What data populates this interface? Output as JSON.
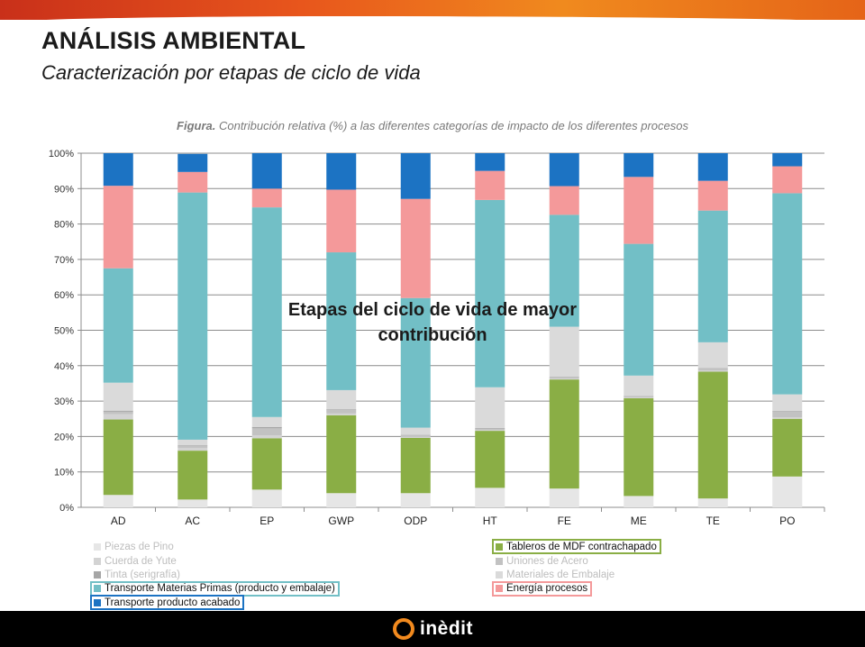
{
  "header": {
    "title": "ANÁLISIS AMBIENTAL",
    "subtitle": "Caracterización por etapas de ciclo de vida"
  },
  "figure": {
    "caption_bold": "Figura.",
    "caption_rest": " Contribución relativa (%) a las diferentes categorías de impacto de los diferentes procesos"
  },
  "overlay": {
    "line1": "Etapas del ciclo de vida de mayor",
    "line2": "contribución"
  },
  "footer": {
    "logo_text": "inèdit"
  },
  "colors": {
    "brand_orange": "#f28a1e",
    "top_bar": "#e8561c"
  },
  "chart_data": {
    "type": "bar",
    "stacked": true,
    "categories": [
      "AD",
      "AC",
      "EP",
      "GWP",
      "ODP",
      "HT",
      "FE",
      "ME",
      "TE",
      "PO"
    ],
    "ylim": [
      0,
      100
    ],
    "yticks": [
      "0%",
      "10%",
      "20%",
      "30%",
      "40%",
      "50%",
      "60%",
      "70%",
      "80%",
      "90%",
      "100%"
    ],
    "grid": true,
    "legend_position": "bottom",
    "series": [
      {
        "name": "Piezas de Pino",
        "color": "#e6e6e6",
        "values": [
          3.5,
          2.2,
          5.0,
          4.0,
          4.0,
          5.5,
          5.3,
          3.2,
          2.5,
          8.7
        ],
        "highlighted": false
      },
      {
        "name": "Tableros de MDF contrachapado",
        "color": "#8aae45",
        "values": [
          21.3,
          13.8,
          14.5,
          22.0,
          15.6,
          16.1,
          30.8,
          27.6,
          35.8,
          16.3
        ],
        "highlighted": true
      },
      {
        "name": "Cuerda de Yute",
        "color": "#d3d3d3",
        "values": [
          1.5,
          0.8,
          0.8,
          0.5,
          0.4,
          0.2,
          0.3,
          0.2,
          0.3,
          0.4
        ],
        "highlighted": false
      },
      {
        "name": "Uniones de Acero",
        "color": "#c2c2c2",
        "values": [
          0.7,
          0.5,
          2.0,
          1.0,
          0.4,
          0.4,
          0.4,
          0.3,
          0.6,
          1.6
        ],
        "highlighted": false
      },
      {
        "name": "Tinta (serigrafía)",
        "color": "#a6a6a6",
        "values": [
          0.3,
          0.2,
          0.4,
          0.2,
          0.1,
          0.2,
          0.1,
          0.1,
          0.1,
          0.2
        ],
        "highlighted": false
      },
      {
        "name": "Materiales de Embalaje",
        "color": "#dadada",
        "values": [
          7.9,
          1.6,
          2.8,
          5.4,
          2.0,
          11.5,
          14.1,
          5.8,
          7.3,
          4.7
        ],
        "highlighted": false
      },
      {
        "name": "Transporte Materias Primas (producto y embalaje)",
        "color": "#72bfc6",
        "values": [
          32.3,
          69.8,
          59.2,
          38.9,
          36.6,
          52.9,
          31.6,
          37.2,
          37.2,
          56.8
        ],
        "highlighted": true
      },
      {
        "name": "Energía procesos",
        "color": "#f4999a",
        "values": [
          23.3,
          5.8,
          5.3,
          17.7,
          28.0,
          8.2,
          8.1,
          18.9,
          8.4,
          7.6
        ],
        "highlighted": true
      },
      {
        "name": "Transporte producto acabado",
        "color": "#1c73c3",
        "values": [
          9.2,
          5.1,
          10.0,
          10.3,
          12.9,
          5.0,
          9.3,
          6.7,
          7.8,
          3.7
        ],
        "highlighted": true
      }
    ]
  }
}
